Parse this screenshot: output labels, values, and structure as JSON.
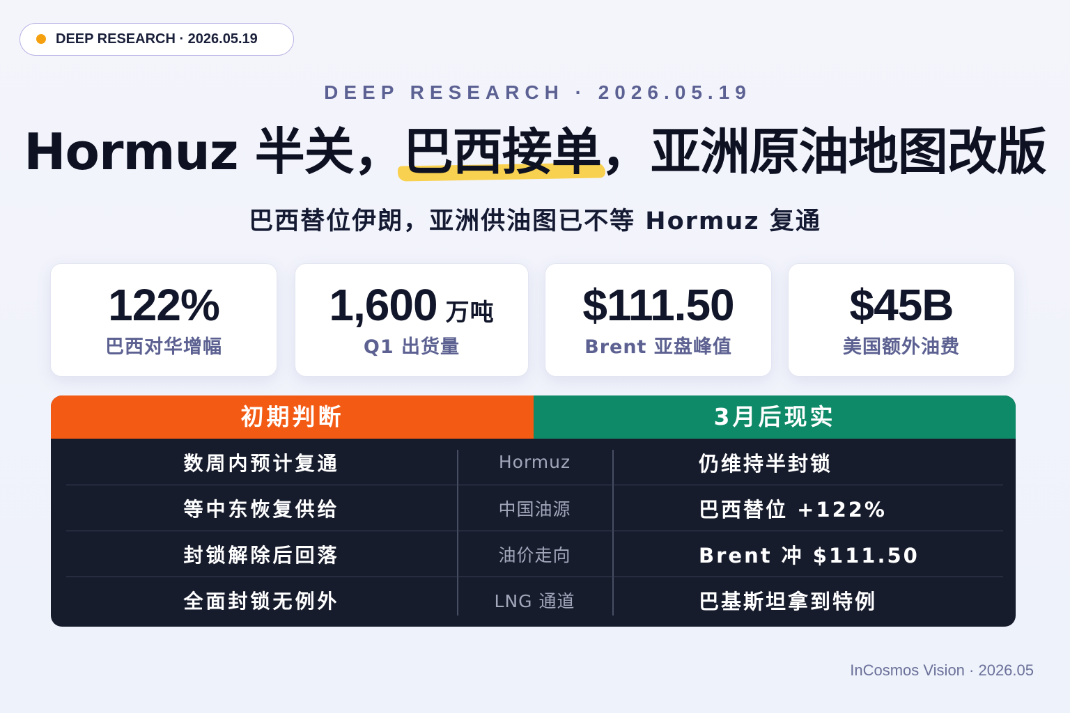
{
  "badge": {
    "label": "DEEP RESEARCH · 2026.05.19"
  },
  "kicker": "DEEP RESEARCH · 2026.05.19",
  "title": {
    "before": "Hormuz 半关，",
    "highlight": "巴西接单",
    "after": "，亚洲原油地图改版"
  },
  "subtitle": "巴西替位伊朗，亚洲供油图已不等 Hormuz 复通",
  "stats": [
    {
      "value": "122%",
      "label": "巴西对华增幅"
    },
    {
      "value": "1,600",
      "unit": "万吨",
      "label": "Q1 出货量"
    },
    {
      "value": "$111.50",
      "label": "Brent 亚盘峰值"
    },
    {
      "value": "$45B",
      "label": "美国额外油费"
    }
  ],
  "comparison": {
    "left_header": "初期判断",
    "right_header": "3月后现实",
    "rows": [
      {
        "before": "数周内预计复通",
        "topic": "Hormuz",
        "after": "仍维持半封锁"
      },
      {
        "before": "等中东恢复供给",
        "topic": "中国油源",
        "after": "巴西替位 +122%"
      },
      {
        "before": "封锁解除后回落",
        "topic": "油价走向",
        "after": "Brent 冲 $111.50"
      },
      {
        "before": "全面封锁无例外",
        "topic": "LNG 通道",
        "after": "巴基斯坦拿到特例"
      }
    ]
  },
  "footer": "InCosmos Vision · 2026.05",
  "colors": {
    "badge_dot": "#f5a10f",
    "header_left": "#f35a14",
    "header_right": "#0f8a68",
    "highlight": "#f9cd3d",
    "table_body": "#171c2d"
  }
}
